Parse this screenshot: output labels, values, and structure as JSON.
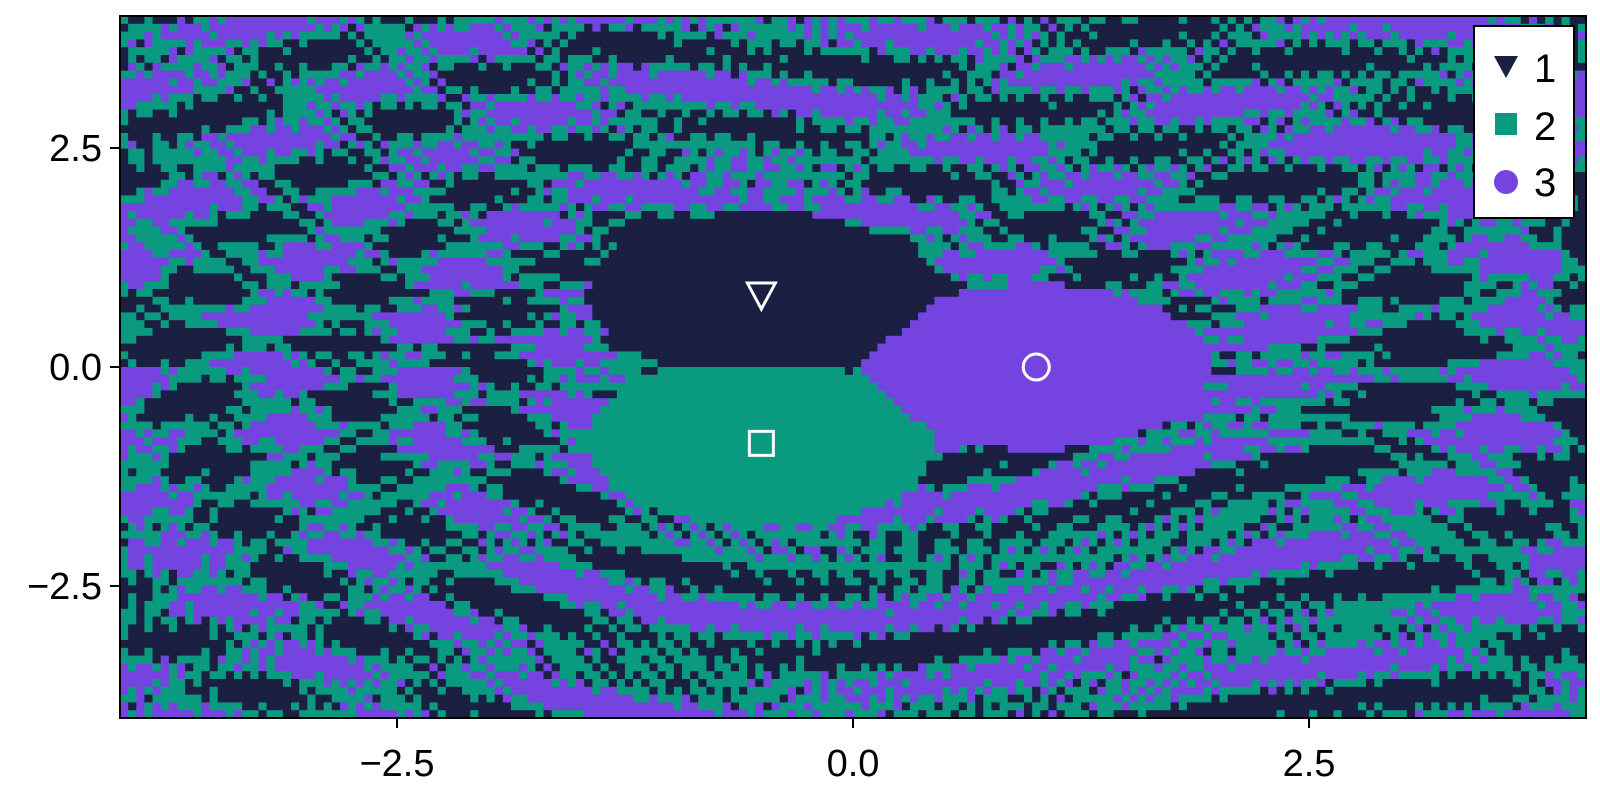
{
  "chart_data": {
    "type": "heatmap",
    "title": "",
    "xlabel": "",
    "ylabel": "",
    "xlim": [
      -4.0,
      4.0
    ],
    "ylim": [
      -4.0,
      4.0
    ],
    "x_ticks": [
      -2.5,
      0.0,
      2.5
    ],
    "y_ticks": [
      -2.5,
      0.0,
      2.5
    ],
    "x_tick_labels": [
      "−2.5",
      "0.0",
      "2.5"
    ],
    "y_tick_labels": [
      "−2.5",
      "0.0",
      "2.5"
    ],
    "grid": false,
    "legend_position": "top-right",
    "categories": [
      {
        "label": "1",
        "marker": "triangle-down",
        "color": "#1b1f42"
      },
      {
        "label": "2",
        "marker": "square",
        "color": "#0a9a80"
      },
      {
        "label": "3",
        "marker": "circle",
        "color": "#7544e0"
      }
    ],
    "attractors": [
      {
        "category": "1",
        "marker": "triangle-down",
        "x": -0.5,
        "y": 0.82
      },
      {
        "category": "2",
        "marker": "square",
        "x": -0.5,
        "y": -0.87
      },
      {
        "category": "3",
        "marker": "circle",
        "x": 1.0,
        "y": 0.0
      }
    ],
    "colors": {
      "1": "#1b1f42",
      "2": "#0a9a80",
      "3": "#7544e0"
    }
  }
}
